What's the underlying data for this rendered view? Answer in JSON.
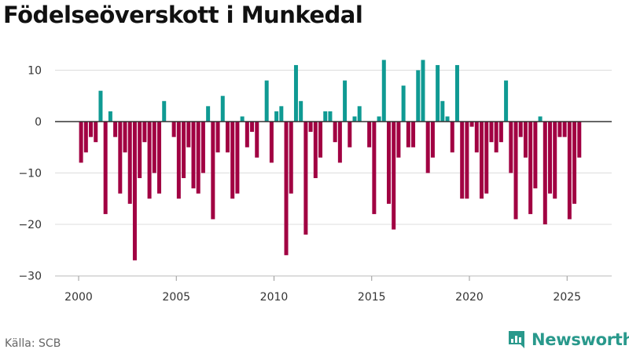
{
  "title": "Födelseöverskott i Munkedal",
  "source": "Källa: SCB",
  "brand": "Newsworthy",
  "colors": {
    "positive": "#0f9a93",
    "negative": "#a10042",
    "grid": "#dddddd",
    "zero": "#333333",
    "brand": "#29998c"
  },
  "chart_data": {
    "type": "bar",
    "title": "Födelseöverskott i Munkedal",
    "xlabel": "",
    "ylabel": "",
    "frequency": "quarterly",
    "first_period": "2000 Q1",
    "ylim": [
      -30,
      14
    ],
    "yticks": [
      10,
      0,
      -10,
      -20,
      -30
    ],
    "ytick_labels": [
      "10",
      "0",
      "−10",
      "−20",
      "−30"
    ],
    "xticks": [
      2000,
      2005,
      2010,
      2015,
      2020,
      2025
    ],
    "grid": true,
    "values": [
      -8,
      -6,
      -3,
      -4,
      6,
      -18,
      2,
      -3,
      -14,
      -6,
      -16,
      -27,
      -11,
      -4,
      -15,
      -10,
      -14,
      4,
      0,
      -3,
      -15,
      -11,
      -5,
      -13,
      -14,
      -10,
      3,
      -19,
      -6,
      5,
      -6,
      -15,
      -14,
      1,
      -5,
      -2,
      -7,
      0,
      8,
      -8,
      2,
      3,
      -26,
      -14,
      11,
      4,
      -22,
      -2,
      -11,
      -7,
      2,
      2,
      -4,
      -8,
      8,
      -5,
      1,
      3,
      0,
      -5,
      -18,
      1,
      12,
      -16,
      -21,
      -7,
      7,
      -5,
      -5,
      10,
      12,
      -10,
      -7,
      11,
      4,
      1,
      -6,
      11,
      -15,
      -15,
      -1,
      -6,
      -15,
      -14,
      -4,
      -6,
      -4,
      8,
      -10,
      -19,
      -3,
      -7,
      -18,
      -13,
      1,
      -20,
      -14,
      -15,
      -3,
      -3,
      -19,
      -16,
      -7
    ]
  }
}
